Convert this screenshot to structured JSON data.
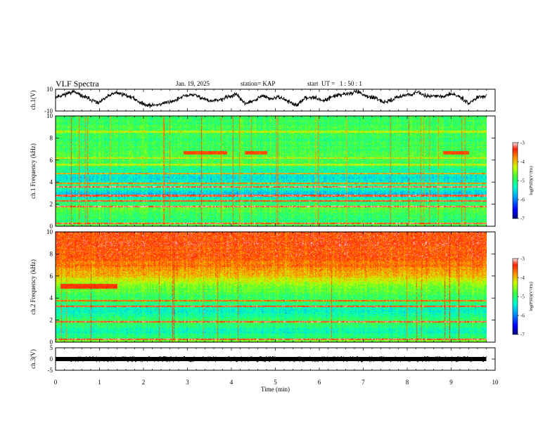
{
  "header": {
    "title": "VLF Spectra",
    "date": "Jan. 19, 2025",
    "station": "station= KAP",
    "start": "start  UT =   1 : 50 : 1"
  },
  "chart_data": [
    {
      "id": "ch1-waveform",
      "type": "line",
      "ylabel": "ch.1(V)",
      "ylim": [
        -10,
        10
      ],
      "yticks": [
        "10",
        "-10"
      ],
      "xlim": [
        0,
        10
      ],
      "x_end": 9.8,
      "waveform_level_v": [
        3,
        5,
        8,
        4,
        1,
        -3,
        3,
        7,
        5,
        2,
        -3,
        -5,
        -4,
        -2,
        0,
        4,
        5,
        2,
        -1,
        0,
        3,
        5,
        -3,
        -1,
        4,
        1,
        3,
        -1,
        -5,
        2,
        3,
        -1,
        3,
        5,
        6,
        8,
        4,
        2,
        -2,
        0,
        4,
        5,
        7,
        4,
        4,
        3,
        6,
        3,
        -3,
        3,
        4
      ]
    },
    {
      "id": "ch1-spectrogram",
      "type": "heatmap",
      "ylabel": "ch.1  Frequency (kHz)",
      "ylim": [
        0,
        10
      ],
      "yticks": [
        "0",
        "2",
        "4",
        "6",
        "8",
        "10"
      ],
      "xlim": [
        0,
        10
      ],
      "x_end": 9.8,
      "colorbar": {
        "label": "log(PSD)(V²/Hz)",
        "ticks": [
          "-3",
          "-4",
          "-5",
          "-6",
          "-7"
        ],
        "range": [
          -7,
          -3
        ]
      },
      "profile_khz": [
        0,
        0.5,
        1.0,
        1.5,
        2.0,
        2.5,
        3.0,
        3.5,
        4.0,
        4.5,
        5.0,
        5.5,
        6.0,
        6.5,
        7.0,
        7.5,
        8.0,
        8.5,
        9.0,
        9.5,
        10.0
      ],
      "profile_log_psd": [
        -4.6,
        -5.0,
        -4.9,
        -4.7,
        -4.9,
        -5.2,
        -5.6,
        -5.1,
        -5.3,
        -5.5,
        -5.2,
        -5.0,
        -4.8,
        -4.8,
        -4.9,
        -4.9,
        -4.9,
        -4.9,
        -4.8,
        -4.9,
        -4.9
      ],
      "bands_khz": [
        [
          0.3,
          -3.3
        ],
        [
          1.8,
          -3.2
        ],
        [
          2.3,
          -3.4
        ],
        [
          2.8,
          -3.3
        ],
        [
          3.6,
          -3.2
        ],
        [
          3.9,
          -3.8
        ],
        [
          4.8,
          -3.9
        ],
        [
          5.6,
          -4.3
        ],
        [
          6.2,
          -4.2
        ],
        [
          8.6,
          -4.3
        ]
      ],
      "events": [
        [
          2.9,
          3.9,
          6.55,
          6.85,
          -3.5
        ],
        [
          4.3,
          4.8,
          6.55,
          6.85,
          -3.5
        ],
        [
          8.8,
          9.4,
          6.55,
          6.85,
          -3.5
        ]
      ],
      "burst_level": -3.5
    },
    {
      "id": "ch2-spectrogram",
      "type": "heatmap",
      "ylabel": "ch.2  Frequency (kHz)",
      "ylim": [
        0,
        10
      ],
      "yticks": [
        "0",
        "2",
        "4",
        "6",
        "8",
        "10"
      ],
      "xlim": [
        0,
        10
      ],
      "x_end": 9.8,
      "colorbar": {
        "label": "log(PSD)(V²/Hz)",
        "ticks": [
          "-3",
          "-4",
          "-5",
          "-6",
          "-7"
        ],
        "range": [
          -7,
          -3
        ]
      },
      "profile_khz": [
        0,
        0.5,
        1.0,
        1.5,
        2.0,
        2.5,
        3.0,
        3.5,
        4.0,
        4.5,
        5.0,
        5.5,
        6.0,
        6.5,
        7.0,
        7.5,
        8.0,
        8.5,
        9.0,
        9.5,
        10.0
      ],
      "profile_log_psd": [
        -4.6,
        -5.0,
        -5.3,
        -5.0,
        -4.9,
        -5.2,
        -5.4,
        -5.0,
        -4.9,
        -4.8,
        -4.6,
        -4.3,
        -4.0,
        -3.9,
        -3.7,
        -3.6,
        -3.5,
        -3.5,
        -3.4,
        -3.5,
        -3.5
      ],
      "bands_khz": [
        [
          0.3,
          -3.3
        ],
        [
          1.9,
          -3.3
        ],
        [
          3.3,
          -3.4
        ],
        [
          3.8,
          -3.6
        ],
        [
          6.3,
          -3.9
        ]
      ],
      "events": [
        [
          0.1,
          1.4,
          4.9,
          5.3,
          -3.4
        ]
      ],
      "burst_level": -3.4
    },
    {
      "id": "ch3-waveform",
      "type": "line",
      "ylabel": "ch.3(V)",
      "ylim": [
        -5,
        5
      ],
      "yticks": [
        "5",
        "0",
        "-5"
      ],
      "xlim": [
        0,
        10
      ],
      "x_end": 9.8,
      "waveform_level_v": [
        0
      ]
    }
  ],
  "xaxis": {
    "label": "Time  (min)",
    "ticks": [
      "0",
      "1",
      "2",
      "3",
      "4",
      "5",
      "6",
      "7",
      "8",
      "9",
      "10"
    ]
  }
}
